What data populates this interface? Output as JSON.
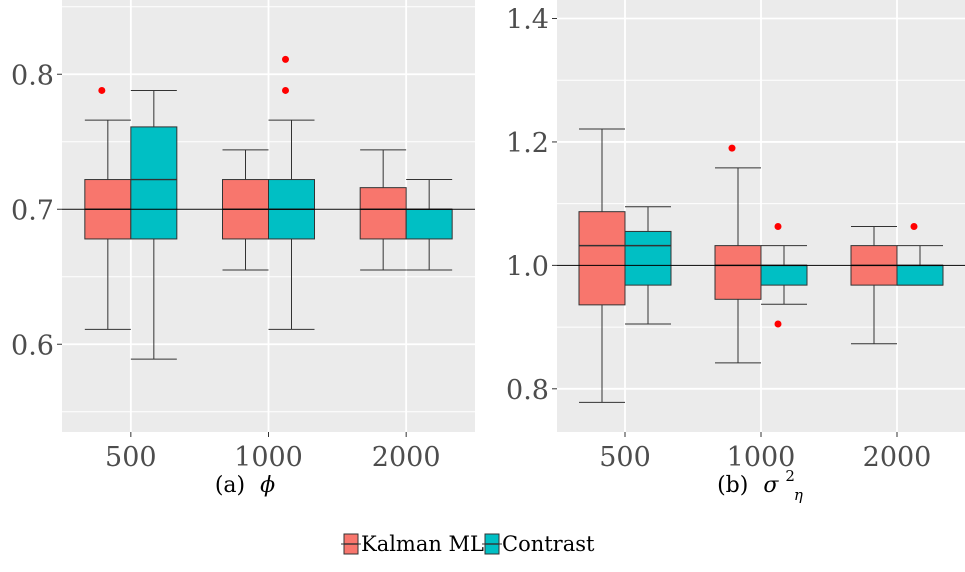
{
  "colors": {
    "kalman": "#F8766D",
    "contrast": "#00BFC4",
    "panel_bg": "#EBEBEB",
    "grid": "#FFFFFF",
    "outlier": "#FF0000"
  },
  "legend": {
    "items": [
      {
        "label": "Kalman MLE",
        "color": "#F8766D"
      },
      {
        "label": "Contrast",
        "color": "#00BFC4"
      }
    ],
    "position": "bottom"
  },
  "chart_data": [
    {
      "type": "boxplot",
      "caption_prefix": "(a)",
      "caption_symbol": "ϕ",
      "categories": [
        "500",
        "1000",
        "2000"
      ],
      "ylim": [
        0.535,
        0.855
      ],
      "yticks": [
        0.6,
        0.7,
        0.8
      ],
      "ytick_labels": [
        "0.6",
        "0.7",
        "0.8"
      ],
      "hline": 0.7,
      "grid": true,
      "series": [
        {
          "name": "Kalman MLE",
          "boxes": [
            {
              "whisker_low": 0.611,
              "q1": 0.678,
              "median": 0.7,
              "q3": 0.722,
              "whisker_high": 0.766,
              "outliers": [
                0.788
              ]
            },
            {
              "whisker_low": 0.655,
              "q1": 0.678,
              "median": 0.7,
              "q3": 0.722,
              "whisker_high": 0.744,
              "outliers": []
            },
            {
              "whisker_low": 0.655,
              "q1": 0.678,
              "median": 0.7,
              "q3": 0.716,
              "whisker_high": 0.744,
              "outliers": []
            }
          ]
        },
        {
          "name": "Contrast",
          "boxes": [
            {
              "whisker_low": 0.589,
              "q1": 0.678,
              "median": 0.722,
              "q3": 0.761,
              "whisker_high": 0.788,
              "outliers": []
            },
            {
              "whisker_low": 0.611,
              "q1": 0.678,
              "median": 0.7,
              "q3": 0.722,
              "whisker_high": 0.766,
              "outliers": [
                0.788,
                0.811
              ]
            },
            {
              "whisker_low": 0.655,
              "q1": 0.678,
              "median": 0.7,
              "q3": 0.7,
              "whisker_high": 0.722,
              "outliers": []
            }
          ]
        }
      ]
    },
    {
      "type": "boxplot",
      "caption_prefix": "(b)",
      "caption_symbol": "σ",
      "caption_sup": "2",
      "caption_sub": "η",
      "categories": [
        "500",
        "1000",
        "2000"
      ],
      "ylim": [
        0.73,
        1.43
      ],
      "yticks": [
        0.8,
        1.0,
        1.2,
        1.4
      ],
      "ytick_labels": [
        "0.8",
        "1.0",
        "1.2",
        "1.4"
      ],
      "hline": 1.0,
      "grid": true,
      "series": [
        {
          "name": "Kalman MLE",
          "boxes": [
            {
              "whisker_low": 0.778,
              "q1": 0.936,
              "median": 1.032,
              "q3": 1.087,
              "whisker_high": 1.221,
              "outliers": []
            },
            {
              "whisker_low": 0.842,
              "q1": 0.945,
              "median": 1.0,
              "q3": 1.032,
              "whisker_high": 1.158,
              "outliers": [
                1.19
              ]
            },
            {
              "whisker_low": 0.873,
              "q1": 0.968,
              "median": 1.0,
              "q3": 1.032,
              "whisker_high": 1.063,
              "outliers": []
            }
          ]
        },
        {
          "name": "Contrast",
          "boxes": [
            {
              "whisker_low": 0.905,
              "q1": 0.968,
              "median": 1.032,
              "q3": 1.055,
              "whisker_high": 1.095,
              "outliers": []
            },
            {
              "whisker_low": 0.937,
              "q1": 0.968,
              "median": 1.0,
              "q3": 1.0,
              "whisker_high": 1.032,
              "outliers": [
                0.905,
                1.063
              ]
            },
            {
              "whisker_low": 0.968,
              "q1": 0.968,
              "median": 1.0,
              "q3": 1.0,
              "whisker_high": 1.032,
              "outliers": [
                1.063
              ]
            }
          ]
        }
      ]
    }
  ]
}
